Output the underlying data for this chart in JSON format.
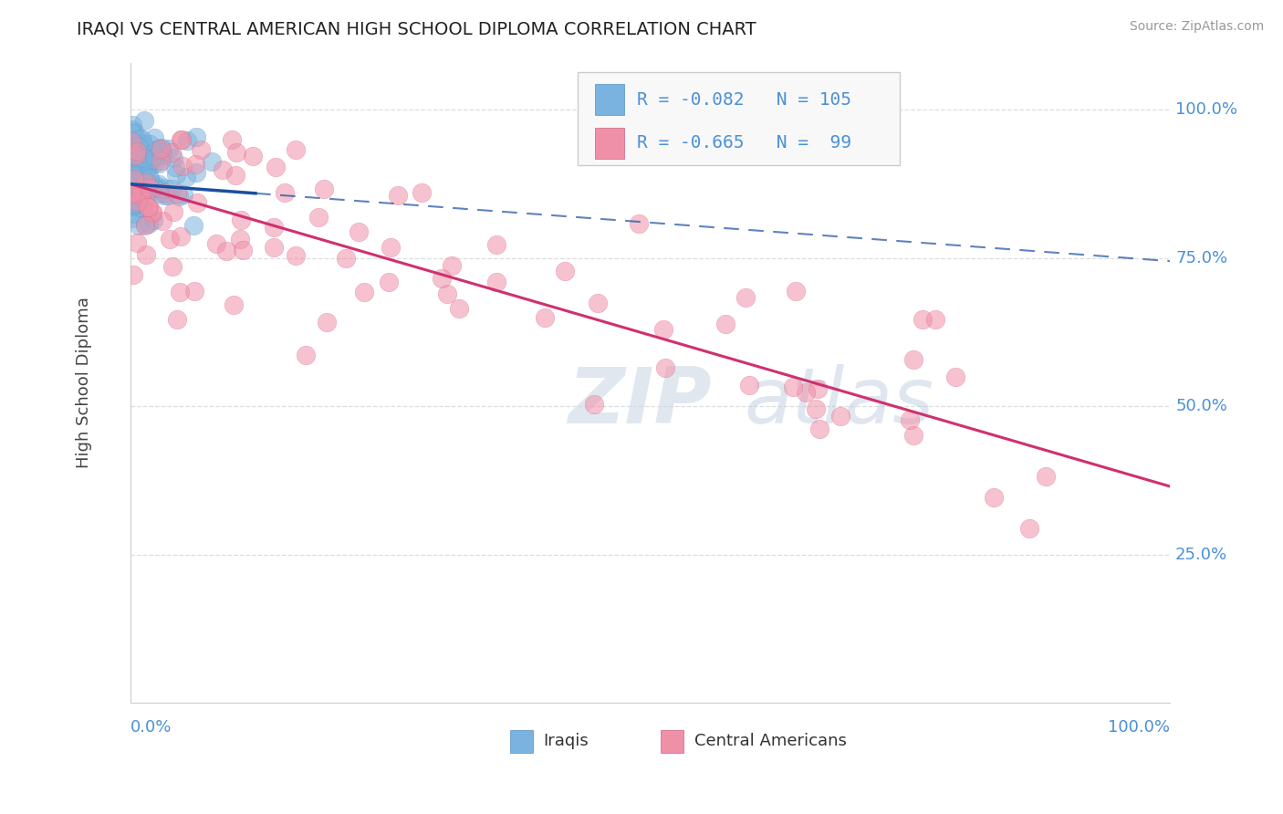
{
  "title": "IRAQI VS CENTRAL AMERICAN HIGH SCHOOL DIPLOMA CORRELATION CHART",
  "source": "Source: ZipAtlas.com",
  "ylabel": "High School Diploma",
  "iraqis_color": "#7ab3df",
  "iraqis_edge": "#5590c0",
  "central_color": "#f090a8",
  "central_edge": "#d06080",
  "trend_iraqis_color": "#1a4fa0",
  "trend_central_color": "#d03070",
  "background_color": "#ffffff",
  "grid_color": "#dddddd",
  "iraqis_R": -0.082,
  "iraqis_N": 105,
  "central_R": -0.665,
  "central_N": 99,
  "ytick_values": [
    0.25,
    0.5,
    0.75,
    1.0
  ],
  "ytick_labels": [
    "25.0%",
    "50.0%",
    "75.0%",
    "100.0%"
  ],
  "tick_label_color": "#4a90d9",
  "legend_box_color": "#f8f8f8",
  "legend_box_edge": "#cccccc",
  "legend_text_color": "#4a90d9",
  "watermark_zip": "ZIP",
  "watermark_atlas": "atlas",
  "watermark_color_zip": "#d0dce8",
  "watermark_color_atlas": "#c8d8e8",
  "bottom_legend_iraqis": "Iraqis",
  "bottom_legend_central": "Central Americans"
}
